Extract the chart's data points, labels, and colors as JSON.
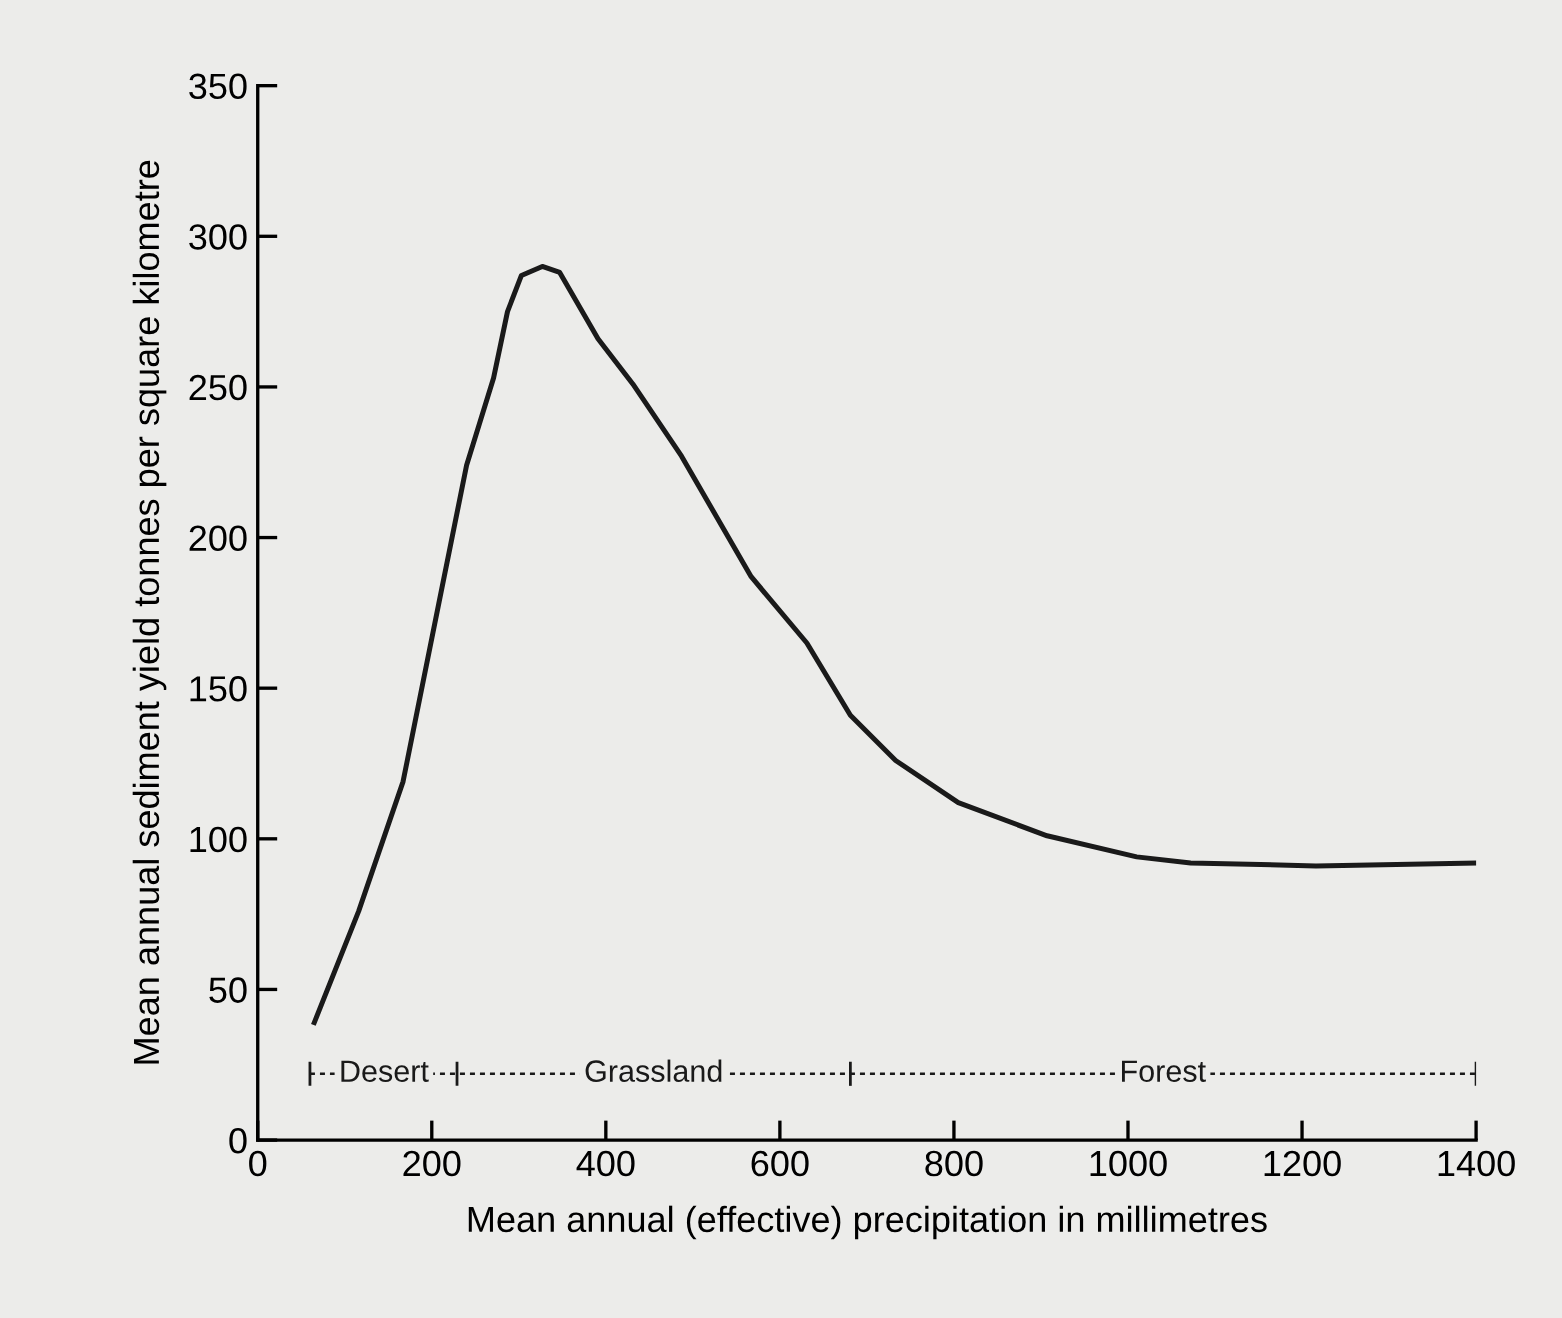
{
  "chart_data": {
    "type": "line",
    "xlabel": "Mean annual (effective) precipitation in millimetres",
    "ylabel": "Mean annual sediment yield tonnes per square kilometre",
    "series": [
      {
        "color": "#1a1a1a",
        "x": [
          65,
          116,
          167,
          208,
          240,
          271,
          287,
          303,
          327,
          347,
          391,
          431,
          487,
          567,
          631,
          681,
          733,
          805,
          907,
          1010,
          1072,
          1216,
          1400
        ],
        "values": [
          39,
          76,
          119,
          178,
          224,
          253,
          275,
          287,
          290,
          288,
          266,
          251,
          227,
          187,
          165,
          141,
          126,
          112,
          101,
          94,
          92,
          91,
          92
        ]
      },
      {
        "color": "#1a1a1a",
        "x": [
          60,
          229,
          681,
          1400
        ],
        "values": [
          22,
          22,
          22,
          22
        ],
        "errors": [
          4,
          4,
          4,
          4
        ],
        "line_style": "dashed"
      }
    ],
    "annotations": [
      {
        "text": "Desert",
        "x": 145,
        "y": 22
      },
      {
        "text": "Grassland",
        "x": 455,
        "y": 22
      },
      {
        "text": "Forest",
        "x": 1040,
        "y": 22
      }
    ],
    "xlim": [
      0,
      1400
    ],
    "ylim": [
      0,
      350
    ],
    "xticks": [
      0,
      200,
      400,
      600,
      800,
      1000,
      1200,
      1400
    ],
    "yticks": [
      0,
      50,
      100,
      150,
      200,
      250,
      300,
      350
    ],
    "grid": false,
    "legend": false,
    "marker": "none",
    "line_style": "solid"
  }
}
